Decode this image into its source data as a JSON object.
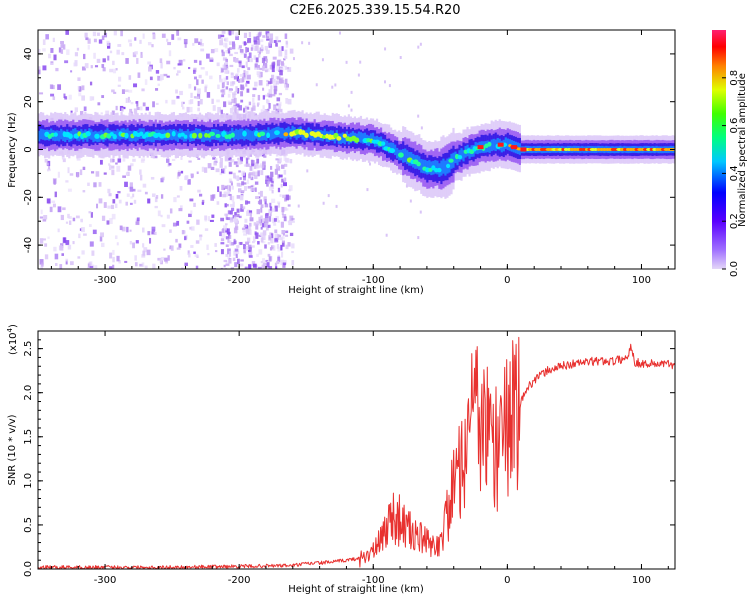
{
  "title": "C2E6.2025.339.15.54.R20",
  "colors": {
    "snr_line": "#e8312f",
    "frame": "#000000",
    "background": "#ffffff"
  },
  "chart_data": [
    {
      "type": "heatmap",
      "name": "spectrogram",
      "xlabel": "Height of straight line (km)",
      "ylabel": "Frequency (Hz)",
      "xlim": [
        -350,
        125
      ],
      "ylim": [
        -50,
        50
      ],
      "xticks": [
        -300,
        -200,
        -100,
        0,
        100
      ],
      "xtick_labels": [
        "-300",
        "-200",
        "-100",
        "0",
        "100"
      ],
      "yticks": [
        -40,
        -20,
        0,
        20,
        40
      ],
      "ytick_labels": [
        "-40",
        "-20",
        "0",
        "20",
        "40"
      ],
      "colorbar": {
        "label": "Normalized spectral amplitude",
        "range": [
          0,
          1
        ],
        "ticks": [
          0.0,
          0.2,
          0.4,
          0.6,
          0.8
        ],
        "tick_labels": [
          "0.0",
          "0.2",
          "0.4",
          "0.6",
          "0.8"
        ],
        "colormap": [
          "#e0d0f7",
          "#6a00ff",
          "#0000ff",
          "#00ffff",
          "#00ff00",
          "#ffff00",
          "#ff0000",
          "#ff0066"
        ]
      },
      "ridge": {
        "x": [
          -350,
          -300,
          -250,
          -200,
          -160,
          -140,
          -120,
          -100,
          -90,
          -80,
          -70,
          -60,
          -50,
          -45,
          -40,
          -30,
          -20,
          -10,
          0,
          10,
          50,
          125
        ],
        "frequency": [
          6,
          6,
          6,
          6,
          7,
          6,
          5,
          4,
          1,
          -2,
          -5,
          -8,
          -8,
          -7,
          -4,
          -1,
          1,
          2,
          2,
          0,
          0,
          0
        ]
      },
      "noise_regions_x": [
        [
          -350,
          -160
        ],
        [
          -215,
          -165
        ]
      ]
    },
    {
      "type": "line",
      "name": "snr",
      "xlabel": "Height of straight line (km)",
      "ylabel": "SNR (10 * v/v)",
      "yscale_label": "(x10",
      "yscale_exponent": "4",
      "yscale_close": ")",
      "xlim": [
        -350,
        125
      ],
      "ylim": [
        0,
        2.7
      ],
      "xticks": [
        -300,
        -200,
        -100,
        0,
        100
      ],
      "xtick_labels": [
        "-300",
        "-200",
        "-100",
        "0",
        "100"
      ],
      "yticks": [
        0.0,
        0.5,
        1.0,
        1.5,
        2.0,
        2.5
      ],
      "ytick_labels": [
        "0.0",
        "0.5",
        "1.0",
        "1.5",
        "2.0",
        "2.5"
      ],
      "series": [
        {
          "name": "SNR",
          "x": [
            -350,
            -300,
            -250,
            -200,
            -160,
            -150,
            -130,
            -110,
            -100,
            -95,
            -90,
            -85,
            -80,
            -75,
            -70,
            -65,
            -60,
            -55,
            -50,
            -45,
            -40,
            -35,
            -30,
            -25,
            -20,
            -15,
            -10,
            -5,
            0,
            5,
            10,
            15,
            20,
            25,
            30,
            40,
            50,
            60,
            70,
            80,
            90,
            92,
            95,
            100,
            110,
            125
          ],
          "y": [
            0.02,
            0.02,
            0.02,
            0.03,
            0.04,
            0.06,
            0.08,
            0.12,
            0.2,
            0.3,
            0.5,
            0.6,
            0.55,
            0.45,
            0.4,
            0.35,
            0.3,
            0.25,
            0.3,
            0.6,
            0.9,
            1.2,
            1.5,
            1.7,
            1.6,
            1.5,
            1.4,
            1.5,
            1.6,
            1.7,
            1.9,
            2.05,
            2.15,
            2.2,
            2.25,
            2.3,
            2.33,
            2.35,
            2.36,
            2.36,
            2.4,
            2.55,
            2.35,
            2.33,
            2.33,
            2.32
          ]
        }
      ]
    }
  ]
}
